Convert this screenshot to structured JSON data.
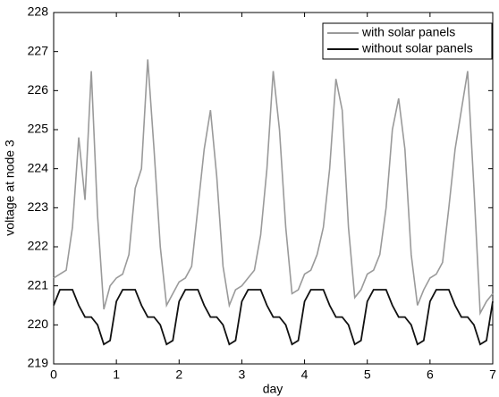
{
  "chart_data": {
    "type": "line",
    "xlabel": "day",
    "ylabel": "voltage at node 3",
    "x": [
      0,
      0.1,
      0.2,
      0.3,
      0.4,
      0.5,
      0.6,
      0.7,
      0.8,
      0.9,
      1,
      1.1,
      1.2,
      1.3,
      1.4,
      1.5,
      1.6,
      1.7,
      1.8,
      1.9,
      2,
      2.1,
      2.2,
      2.3,
      2.4,
      2.5,
      2.6,
      2.7,
      2.8,
      2.9,
      3,
      3.1,
      3.2,
      3.3,
      3.4,
      3.5,
      3.6,
      3.7,
      3.8,
      3.9,
      4,
      4.1,
      4.2,
      4.3,
      4.4,
      4.5,
      4.6,
      4.7,
      4.8,
      4.9,
      5,
      5.1,
      5.2,
      5.3,
      5.4,
      5.5,
      5.6,
      5.7,
      5.8,
      5.9,
      6,
      6.1,
      6.2,
      6.3,
      6.4,
      6.5,
      6.6,
      6.7,
      6.8,
      6.9,
      7
    ],
    "series": [
      {
        "name": "with solar panels",
        "color": "#9a9a9a",
        "values": [
          221.2,
          221.3,
          221.4,
          222.5,
          224.8,
          223.2,
          226.5,
          222.8,
          220.4,
          221.0,
          221.2,
          221.3,
          221.8,
          223.5,
          224.0,
          226.8,
          224.5,
          222.0,
          220.5,
          220.8,
          221.1,
          221.2,
          221.5,
          223.0,
          224.5,
          225.5,
          223.8,
          221.5,
          220.5,
          220.9,
          221.0,
          221.2,
          221.4,
          222.3,
          224.0,
          226.5,
          225.0,
          222.5,
          220.8,
          220.9,
          221.3,
          221.4,
          221.8,
          222.5,
          224.0,
          226.3,
          225.5,
          222.5,
          220.7,
          220.9,
          221.3,
          221.4,
          221.8,
          223.0,
          225.0,
          225.8,
          224.5,
          221.8,
          220.5,
          220.9,
          221.2,
          221.3,
          221.6,
          223.0,
          224.5,
          225.5,
          226.5,
          223.5,
          220.3,
          220.6,
          220.8
        ]
      },
      {
        "name": "without solar panels",
        "color": "#111111",
        "values": [
          220.5,
          220.9,
          220.9,
          220.9,
          220.5,
          220.2,
          220.2,
          220.0,
          219.5,
          219.6,
          220.6,
          220.9,
          220.9,
          220.9,
          220.5,
          220.2,
          220.2,
          220.0,
          219.5,
          219.6,
          220.6,
          220.9,
          220.9,
          220.9,
          220.5,
          220.2,
          220.2,
          220.0,
          219.5,
          219.6,
          220.6,
          220.9,
          220.9,
          220.9,
          220.5,
          220.2,
          220.2,
          220.0,
          219.5,
          219.6,
          220.6,
          220.9,
          220.9,
          220.9,
          220.5,
          220.2,
          220.2,
          220.0,
          219.5,
          219.6,
          220.6,
          220.9,
          220.9,
          220.9,
          220.5,
          220.2,
          220.2,
          220.0,
          219.5,
          219.6,
          220.6,
          220.9,
          220.9,
          220.9,
          220.5,
          220.2,
          220.2,
          220.0,
          219.5,
          219.6,
          220.6
        ]
      }
    ],
    "xlim": [
      0,
      7
    ],
    "xticks": [
      0,
      1,
      2,
      3,
      4,
      5,
      6,
      7
    ],
    "ylim": [
      219,
      228
    ],
    "yticks": [
      219,
      220,
      221,
      222,
      223,
      224,
      225,
      226,
      227,
      228
    ],
    "legend": "upper right"
  }
}
